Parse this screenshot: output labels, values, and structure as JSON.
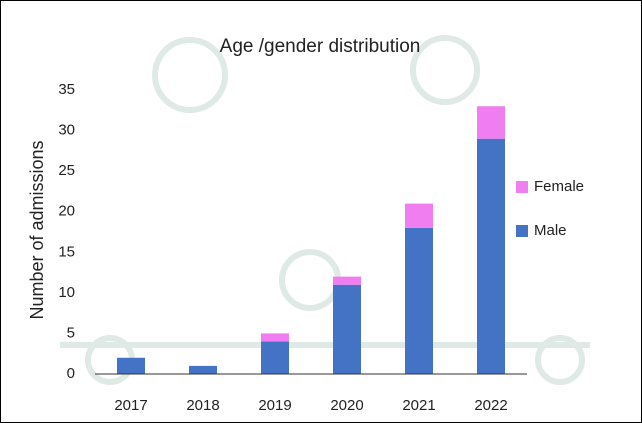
{
  "chart_data": {
    "type": "stacked_bar",
    "title": "Age /gender distribution",
    "y_label": "Number of admissions",
    "categories": [
      "2017",
      "2018",
      "2019",
      "2020",
      "2021",
      "2022"
    ],
    "series": [
      {
        "name": "Male",
        "color": "#4472c4",
        "values": [
          2,
          1,
          4,
          11,
          18,
          29
        ]
      },
      {
        "name": "Female",
        "color": "#f07ef0",
        "values": [
          0,
          0,
          1,
          1,
          3,
          4
        ]
      }
    ],
    "ylim": [
      0,
      35
    ],
    "yticks": [
      0,
      5,
      10,
      15,
      20,
      25,
      30,
      35
    ],
    "grid": false,
    "legend": "right"
  }
}
